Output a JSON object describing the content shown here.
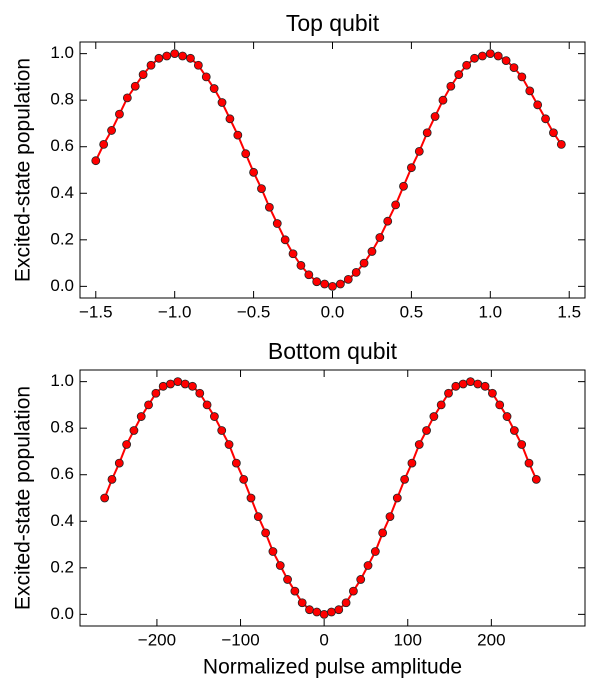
{
  "chart_data": [
    {
      "type": "line",
      "title": "Top qubit",
      "ylabel": "Excited-state population",
      "x": [
        -1.5,
        -1.45,
        -1.4,
        -1.35,
        -1.3,
        -1.25,
        -1.2,
        -1.15,
        -1.1,
        -1.05,
        -1.0,
        -0.95,
        -0.9,
        -0.85,
        -0.8,
        -0.75,
        -0.7,
        -0.65,
        -0.6,
        -0.55,
        -0.5,
        -0.45,
        -0.4,
        -0.35,
        -0.3,
        -0.25,
        -0.2,
        -0.15,
        -0.1,
        -0.05,
        0.0,
        0.05,
        0.1,
        0.15,
        0.2,
        0.25,
        0.3,
        0.35,
        0.4,
        0.45,
        0.5,
        0.55,
        0.6,
        0.65,
        0.7,
        0.75,
        0.8,
        0.85,
        0.9,
        0.95,
        1.0,
        1.05,
        1.1,
        1.15,
        1.2,
        1.25,
        1.3,
        1.35,
        1.4,
        1.45
      ],
      "series": [
        {
          "color": "#ff0000",
          "values": [
            0.54,
            0.61,
            0.67,
            0.74,
            0.81,
            0.86,
            0.91,
            0.95,
            0.98,
            0.99,
            1.0,
            0.99,
            0.98,
            0.95,
            0.9,
            0.85,
            0.79,
            0.72,
            0.65,
            0.57,
            0.49,
            0.42,
            0.34,
            0.27,
            0.2,
            0.14,
            0.09,
            0.05,
            0.02,
            0.01,
            0.0,
            0.01,
            0.03,
            0.06,
            0.1,
            0.15,
            0.21,
            0.28,
            0.35,
            0.43,
            0.51,
            0.58,
            0.66,
            0.73,
            0.8,
            0.86,
            0.91,
            0.95,
            0.98,
            0.99,
            1.0,
            0.99,
            0.97,
            0.94,
            0.9,
            0.84,
            0.78,
            0.72,
            0.66,
            0.61
          ]
        }
      ],
      "xlim": [
        -1.6,
        1.6
      ],
      "xticks": [
        {
          "value": -1.5,
          "label": "−1.5"
        },
        {
          "value": -1.0,
          "label": "−1.0"
        },
        {
          "value": -0.5,
          "label": "−0.5"
        },
        {
          "value": 0.0,
          "label": "0.0"
        },
        {
          "value": 0.5,
          "label": "0.5"
        },
        {
          "value": 1.0,
          "label": "1.0"
        },
        {
          "value": 1.5,
          "label": "1.5"
        }
      ],
      "ylim": [
        -0.05,
        1.05
      ],
      "yticks": [
        {
          "value": 0.0,
          "label": "0.0"
        },
        {
          "value": 0.2,
          "label": "0.2"
        },
        {
          "value": 0.4,
          "label": "0.4"
        },
        {
          "value": 0.6,
          "label": "0.6"
        },
        {
          "value": 0.8,
          "label": "0.8"
        },
        {
          "value": 1.0,
          "label": "1.0"
        }
      ]
    },
    {
      "type": "line",
      "title": "Bottom qubit",
      "ylabel": "Excited-state population",
      "xlabel": "Normalized pulse amplitude",
      "x": [
        -262.5,
        -253.75,
        -245,
        -236.25,
        -227.5,
        -218.75,
        -210,
        -201.25,
        -192.5,
        -183.75,
        -175,
        -166.25,
        -157.5,
        -148.75,
        -140,
        -131.25,
        -122.5,
        -113.75,
        -105,
        -96.25,
        -87.5,
        -78.75,
        -70,
        -61.25,
        -52.5,
        -43.75,
        -35,
        -26.25,
        -17.5,
        -8.75,
        0,
        8.75,
        17.5,
        26.25,
        35,
        43.75,
        52.5,
        61.25,
        70,
        78.75,
        87.5,
        96.25,
        105,
        113.75,
        122.5,
        131.25,
        140,
        148.75,
        157.5,
        166.25,
        175,
        183.75,
        192.5,
        201.25,
        210,
        218.75,
        227.5,
        236.25,
        245,
        253.75
      ],
      "series": [
        {
          "color": "#ff0000",
          "values": [
            0.5,
            0.58,
            0.65,
            0.73,
            0.79,
            0.85,
            0.9,
            0.95,
            0.98,
            0.99,
            1.0,
            0.99,
            0.98,
            0.95,
            0.9,
            0.85,
            0.79,
            0.73,
            0.65,
            0.58,
            0.5,
            0.42,
            0.35,
            0.27,
            0.21,
            0.15,
            0.1,
            0.05,
            0.02,
            0.01,
            0.0,
            0.01,
            0.02,
            0.05,
            0.1,
            0.15,
            0.21,
            0.27,
            0.35,
            0.42,
            0.5,
            0.58,
            0.65,
            0.73,
            0.79,
            0.85,
            0.9,
            0.95,
            0.98,
            0.99,
            1.0,
            0.99,
            0.98,
            0.95,
            0.9,
            0.85,
            0.79,
            0.73,
            0.65,
            0.58
          ]
        }
      ],
      "xlim": [
        -292,
        312
      ],
      "xticks": [
        {
          "value": -200,
          "label": "−200"
        },
        {
          "value": -100,
          "label": "−100"
        },
        0,
        100,
        200
      ],
      "ylim": [
        -0.05,
        1.05
      ],
      "yticks": [
        {
          "value": 0.0,
          "label": "0.0"
        },
        {
          "value": 0.2,
          "label": "0.2"
        },
        {
          "value": 0.4,
          "label": "0.4"
        },
        {
          "value": 0.6,
          "label": "0.6"
        },
        {
          "value": 0.8,
          "label": "0.8"
        },
        {
          "value": 1.0,
          "label": "1.0"
        }
      ]
    }
  ]
}
